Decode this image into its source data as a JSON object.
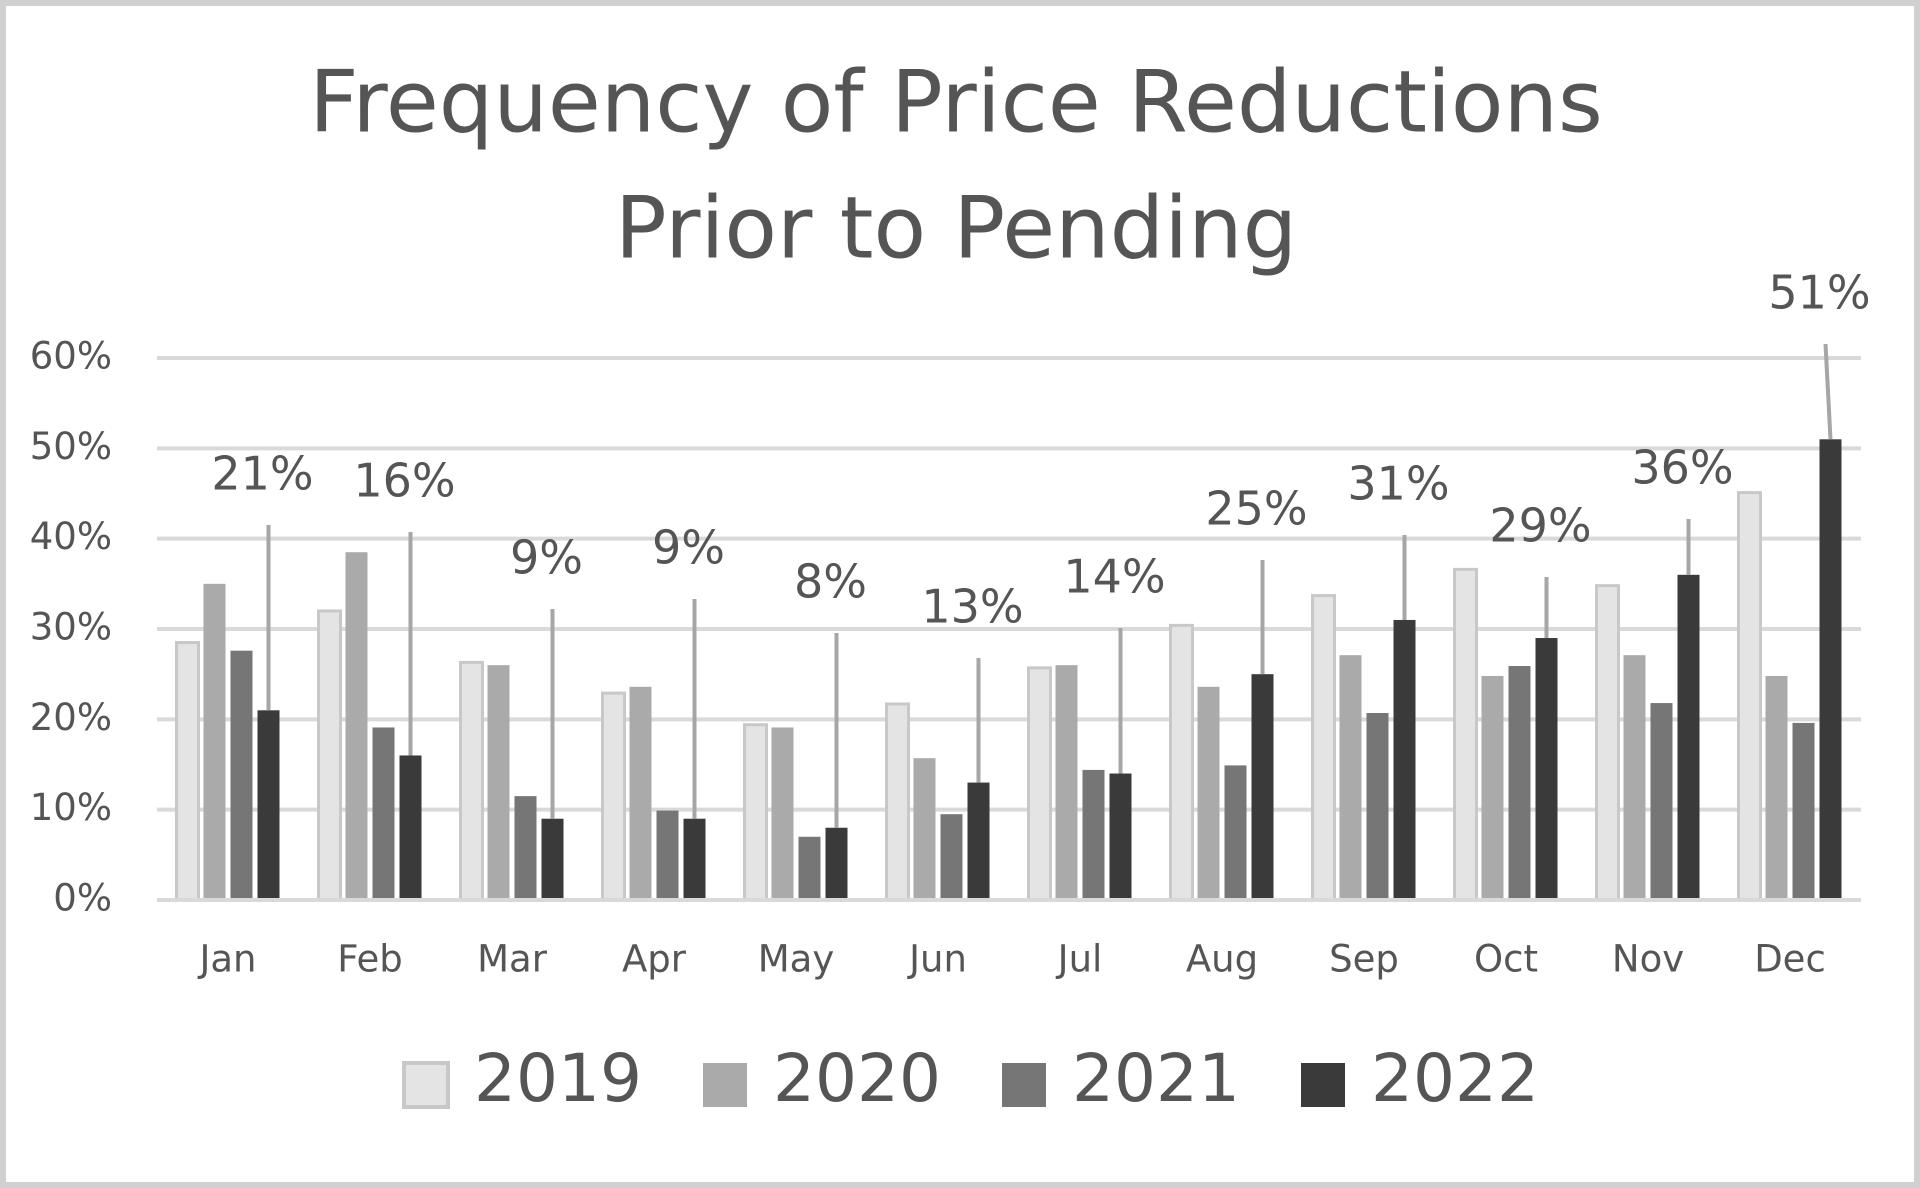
{
  "chart_data": {
    "type": "bar",
    "title": [
      "Frequency of Price Reductions",
      "Prior to Pending"
    ],
    "categories": [
      "Jan",
      "Feb",
      "Mar",
      "Apr",
      "May",
      "Jun",
      "Jul",
      "Aug",
      "Sep",
      "Oct",
      "Nov",
      "Dec"
    ],
    "series": [
      {
        "name": "2019",
        "color": "#e4e4e4",
        "values": [
          28.5,
          32,
          26.3,
          22.9,
          19.4,
          21.7,
          25.7,
          30.4,
          33.7,
          36.6,
          34.8,
          45.1
        ]
      },
      {
        "name": "2020",
        "color": "#aaaaaa",
        "values": [
          35,
          38.5,
          26,
          23.6,
          19.1,
          15.7,
          26,
          23.6,
          27.1,
          24.8,
          27.1,
          24.8
        ]
      },
      {
        "name": "2021",
        "color": "#767676",
        "values": [
          27.6,
          19.1,
          11.5,
          9.9,
          7,
          9.5,
          14.4,
          14.9,
          20.7,
          25.9,
          21.8,
          19.6
        ]
      },
      {
        "name": "2022",
        "color": "#3a3a3a",
        "values": [
          21,
          16,
          9,
          9,
          8,
          13,
          14,
          25,
          31,
          29,
          36,
          51
        ],
        "value_labels": [
          "21%",
          "16%",
          "9%",
          "9%",
          "8%",
          "13%",
          "14%",
          "25%",
          "31%",
          "29%",
          "36%",
          "51%"
        ]
      }
    ],
    "ylim": [
      0,
      60
    ],
    "yticks": [
      {
        "value": 0,
        "label": "0%"
      },
      {
        "value": 10,
        "label": "10%"
      },
      {
        "value": 20,
        "label": "20%"
      },
      {
        "value": 30,
        "label": "30%"
      },
      {
        "value": 40,
        "label": "40%"
      },
      {
        "value": 50,
        "label": "50%"
      },
      {
        "value": 60,
        "label": "60%"
      }
    ],
    "grid": true
  }
}
